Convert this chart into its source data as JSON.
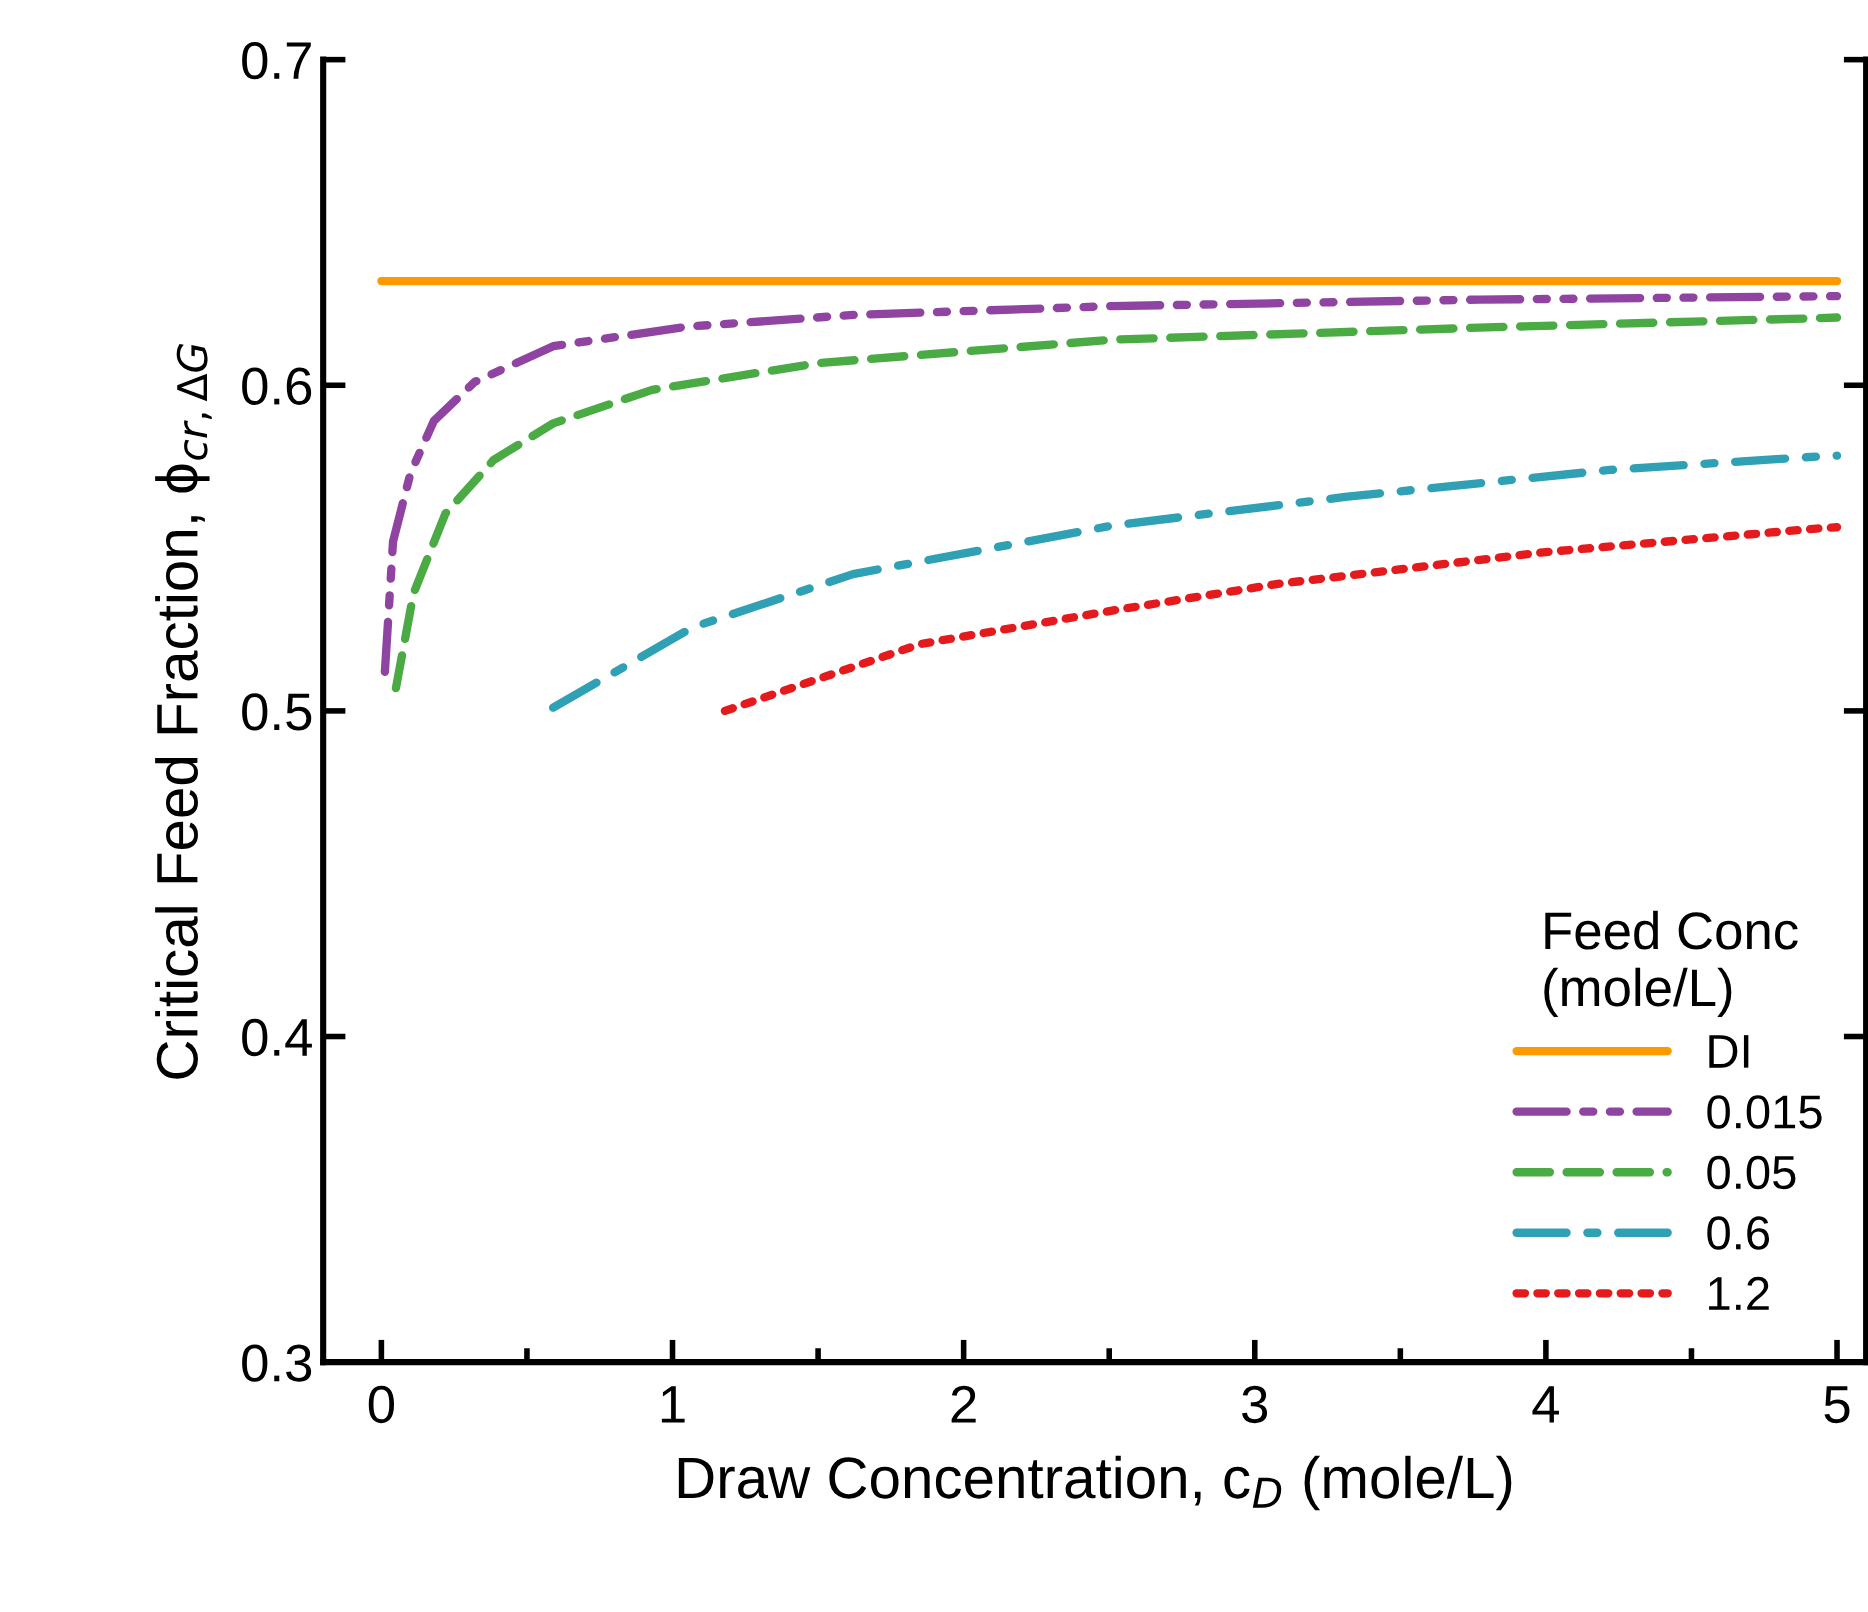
{
  "chart_data": {
    "type": "line",
    "xlabel": "Draw Concentration, c$_{D}$ (mole/L)",
    "ylabel": "Critical Feed Fraction, ϕ$_{cr,ΔG}$",
    "legend_title": "Feed Conc\n(mole/L)",
    "xlim": [
      -0.2,
      5.1
    ],
    "xticks": [
      0,
      1,
      2,
      3,
      4,
      5
    ],
    "ylim": [
      0.3,
      0.7
    ],
    "yticks": [
      0.3,
      0.4,
      0.5,
      0.6,
      0.7
    ],
    "grid": false,
    "legend": "bottom right",
    "marker": "none",
    "series": [
      {
        "name": "DI",
        "color": "#ff9900",
        "line_style": "solid",
        "x": [
          0,
          5
        ],
        "values": [
          0.632,
          0.632
        ]
      },
      {
        "name": "0.015",
        "color": "#8e44a0",
        "line_style": "dashdotdot",
        "x": [
          0.012,
          0.04,
          0.1,
          0.18,
          0.32,
          0.59,
          1.05,
          1.62,
          2.51,
          3.77,
          4.93,
          5
        ],
        "values": [
          0.512,
          0.552,
          0.573,
          0.589,
          0.601,
          0.612,
          0.618,
          0.6216,
          0.6243,
          0.6263,
          0.6273,
          0.6274
        ]
      },
      {
        "name": "0.05",
        "color": "#4aab45",
        "line_style": "dashed",
        "x": [
          0.05,
          0.11,
          0.22,
          0.385,
          0.59,
          0.93,
          1.5,
          2.51,
          3.77,
          4.93,
          5
        ],
        "values": [
          0.507,
          0.536,
          0.5606,
          0.577,
          0.5883,
          0.5986,
          0.6068,
          0.614,
          0.6177,
          0.6206,
          0.6208
        ]
      },
      {
        "name": "0.6",
        "color": "#30a0b5",
        "line_style": "dashdot",
        "x": [
          0.59,
          1.07,
          1.62,
          2.51,
          3.31,
          4.22,
          4.93,
          5
        ],
        "values": [
          0.501,
          0.5257,
          0.542,
          0.5569,
          0.5657,
          0.574,
          0.5781,
          0.5784
        ]
      },
      {
        "name": "1.2",
        "color": "#e41a1c",
        "line_style": "dotted",
        "x": [
          1.18,
          1.85,
          2.51,
          3.08,
          3.99,
          4.93,
          5
        ],
        "values": [
          0.5,
          0.5205,
          0.5308,
          0.539,
          0.5487,
          0.556,
          0.5564
        ]
      }
    ]
  }
}
